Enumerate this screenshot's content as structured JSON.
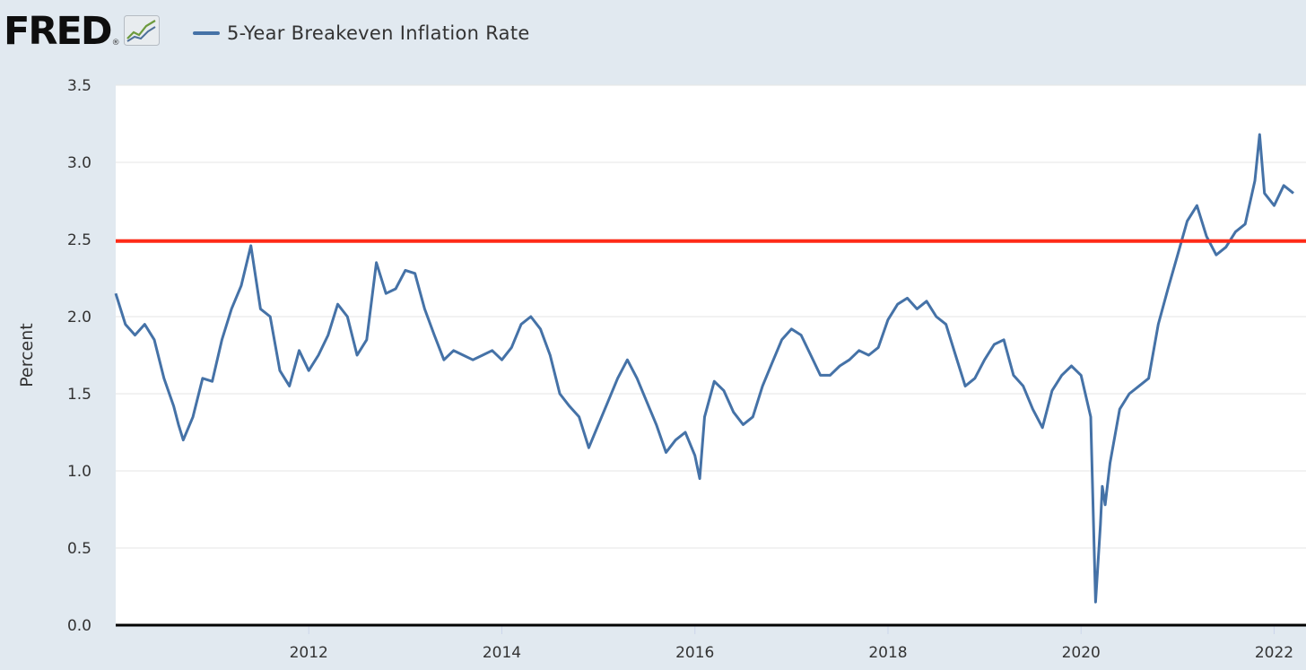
{
  "brand": {
    "logo_text": "FRED",
    "registered_mark": "®",
    "icon": "line-graph-icon"
  },
  "legend": {
    "label": "5-Year Breakeven Inflation Rate"
  },
  "colors": {
    "series": "#4572a7",
    "reference_line": "#ff2a17",
    "plot_background": "#ffffff",
    "frame_background": "#e1e9f0",
    "gridline": "#e6e6e6",
    "baseline": "#000000"
  },
  "chart_data": {
    "type": "line",
    "title": "",
    "xlabel": "",
    "ylabel": "Percent",
    "xlim": [
      2010.0,
      2022.2
    ],
    "ylim": [
      0,
      3.5
    ],
    "x_ticks": [
      {
        "value": 2012,
        "label": "2012"
      },
      {
        "value": 2014,
        "label": "2014"
      },
      {
        "value": 2016,
        "label": "2016"
      },
      {
        "value": 2018,
        "label": "2018"
      },
      {
        "value": 2020,
        "label": "2020"
      },
      {
        "value": 2022,
        "label": "2022"
      }
    ],
    "y_ticks": [
      {
        "value": 0.0,
        "label": "0.0"
      },
      {
        "value": 0.5,
        "label": "0.5"
      },
      {
        "value": 1.0,
        "label": "1.0"
      },
      {
        "value": 1.5,
        "label": "1.5"
      },
      {
        "value": 2.0,
        "label": "2.0"
      },
      {
        "value": 2.5,
        "label": "2.5"
      },
      {
        "value": 3.0,
        "label": "3.0"
      },
      {
        "value": 3.5,
        "label": "3.5"
      }
    ],
    "grid": true,
    "reference_line": {
      "y": 2.49,
      "label": ""
    },
    "series": [
      {
        "name": "5-Year Breakeven Inflation Rate",
        "x": [
          2010.0,
          2010.1,
          2010.2,
          2010.3,
          2010.4,
          2010.5,
          2010.6,
          2010.65,
          2010.7,
          2010.8,
          2010.9,
          2011.0,
          2011.1,
          2011.2,
          2011.3,
          2011.4,
          2011.5,
          2011.6,
          2011.7,
          2011.8,
          2011.9,
          2012.0,
          2012.1,
          2012.2,
          2012.3,
          2012.4,
          2012.5,
          2012.6,
          2012.7,
          2012.8,
          2012.9,
          2013.0,
          2013.1,
          2013.2,
          2013.3,
          2013.4,
          2013.5,
          2013.6,
          2013.7,
          2013.8,
          2013.9,
          2014.0,
          2014.1,
          2014.2,
          2014.3,
          2014.4,
          2014.5,
          2014.6,
          2014.7,
          2014.8,
          2014.9,
          2015.0,
          2015.1,
          2015.2,
          2015.3,
          2015.4,
          2015.5,
          2015.6,
          2015.7,
          2015.8,
          2015.9,
          2016.0,
          2016.05,
          2016.1,
          2016.2,
          2016.3,
          2016.4,
          2016.5,
          2016.6,
          2016.7,
          2016.8,
          2016.9,
          2017.0,
          2017.1,
          2017.2,
          2017.3,
          2017.4,
          2017.5,
          2017.6,
          2017.7,
          2017.8,
          2017.9,
          2018.0,
          2018.1,
          2018.2,
          2018.3,
          2018.4,
          2018.5,
          2018.6,
          2018.7,
          2018.8,
          2018.9,
          2019.0,
          2019.1,
          2019.2,
          2019.3,
          2019.4,
          2019.5,
          2019.6,
          2019.7,
          2019.8,
          2019.9,
          2020.0,
          2020.1,
          2020.15,
          2020.2,
          2020.22,
          2020.25,
          2020.3,
          2020.4,
          2020.5,
          2020.6,
          2020.7,
          2020.8,
          2020.9,
          2021.0,
          2021.1,
          2021.2,
          2021.3,
          2021.4,
          2021.5,
          2021.6,
          2021.7,
          2021.8,
          2021.85,
          2021.9,
          2022.0,
          2022.1,
          2022.2
        ],
        "y": [
          2.15,
          1.95,
          1.88,
          1.95,
          1.85,
          1.6,
          1.42,
          1.3,
          1.2,
          1.35,
          1.6,
          1.58,
          1.85,
          2.05,
          2.2,
          2.46,
          2.05,
          2.0,
          1.65,
          1.55,
          1.78,
          1.65,
          1.75,
          1.88,
          2.08,
          2.0,
          1.75,
          1.85,
          2.35,
          2.15,
          2.18,
          2.3,
          2.28,
          2.05,
          1.88,
          1.72,
          1.78,
          1.75,
          1.72,
          1.75,
          1.78,
          1.72,
          1.8,
          1.95,
          2.0,
          1.92,
          1.75,
          1.5,
          1.42,
          1.35,
          1.15,
          1.3,
          1.45,
          1.6,
          1.72,
          1.6,
          1.45,
          1.3,
          1.12,
          1.2,
          1.25,
          1.1,
          0.95,
          1.35,
          1.58,
          1.52,
          1.38,
          1.3,
          1.35,
          1.55,
          1.7,
          1.85,
          1.92,
          1.88,
          1.75,
          1.62,
          1.62,
          1.68,
          1.72,
          1.78,
          1.75,
          1.8,
          1.98,
          2.08,
          2.12,
          2.05,
          2.1,
          2.0,
          1.95,
          1.75,
          1.55,
          1.6,
          1.72,
          1.82,
          1.85,
          1.62,
          1.55,
          1.4,
          1.28,
          1.52,
          1.62,
          1.68,
          1.62,
          1.35,
          0.15,
          0.65,
          0.9,
          0.78,
          1.05,
          1.4,
          1.5,
          1.55,
          1.6,
          1.95,
          2.18,
          2.4,
          2.62,
          2.72,
          2.52,
          2.4,
          2.45,
          2.55,
          2.6,
          2.88,
          3.18,
          2.8,
          2.72,
          2.85,
          2.8
        ]
      }
    ]
  }
}
